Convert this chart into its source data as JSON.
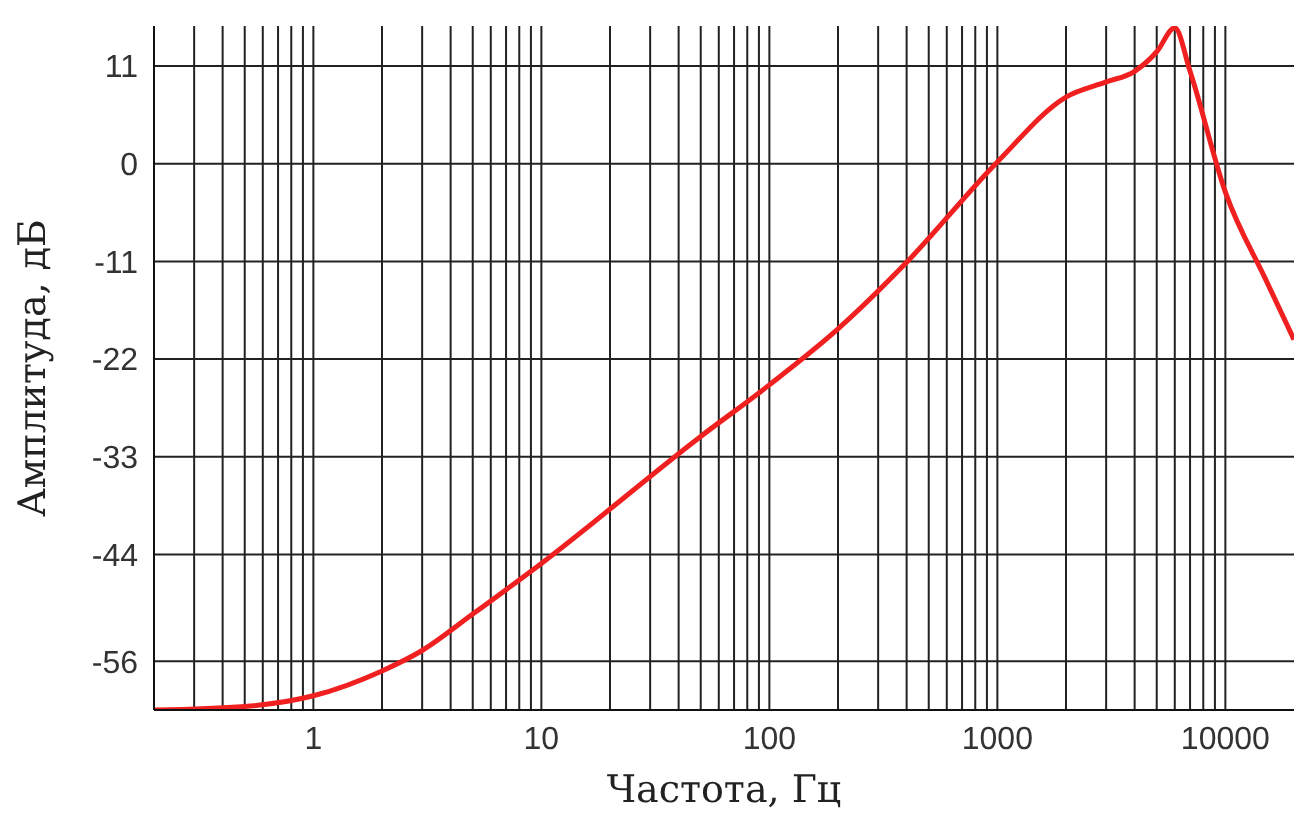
{
  "chart_data": {
    "type": "line",
    "xlabel": "Частота, Гц",
    "ylabel": "Амплитуда, дБ",
    "log": "x",
    "grid": true,
    "marker": "none",
    "line_style": "solid",
    "xlim": [
      0.2,
      20000
    ],
    "ylim": [
      -61.5,
      15.5
    ],
    "xticks": [
      {
        "value": 0.3,
        "label": null
      },
      {
        "value": 0.4,
        "label": null
      },
      {
        "value": 0.5,
        "label": null
      },
      {
        "value": 0.6,
        "label": null
      },
      {
        "value": 0.7,
        "label": null
      },
      {
        "value": 0.8,
        "label": null
      },
      {
        "value": 0.9,
        "label": null
      },
      1,
      {
        "value": 2,
        "label": null
      },
      {
        "value": 3,
        "label": null
      },
      {
        "value": 4,
        "label": null
      },
      {
        "value": 5,
        "label": null
      },
      {
        "value": 6,
        "label": null
      },
      {
        "value": 7,
        "label": null
      },
      {
        "value": 8,
        "label": null
      },
      {
        "value": 9,
        "label": null
      },
      10,
      {
        "value": 20,
        "label": null
      },
      {
        "value": 30,
        "label": null
      },
      {
        "value": 40,
        "label": null
      },
      {
        "value": 50,
        "label": null
      },
      {
        "value": 60,
        "label": null
      },
      {
        "value": 70,
        "label": null
      },
      {
        "value": 80,
        "label": null
      },
      {
        "value": 90,
        "label": null
      },
      100,
      {
        "value": 200,
        "label": null
      },
      {
        "value": 300,
        "label": null
      },
      {
        "value": 400,
        "label": null
      },
      {
        "value": 500,
        "label": null
      },
      {
        "value": 600,
        "label": null
      },
      {
        "value": 700,
        "label": null
      },
      {
        "value": 800,
        "label": null
      },
      {
        "value": 900,
        "label": null
      },
      1000,
      {
        "value": 2000,
        "label": null
      },
      {
        "value": 3000,
        "label": null
      },
      {
        "value": 4000,
        "label": null
      },
      {
        "value": 5000,
        "label": null
      },
      {
        "value": 6000,
        "label": null
      },
      {
        "value": 7000,
        "label": null
      },
      {
        "value": 8000,
        "label": null
      },
      {
        "value": 9000,
        "label": null
      },
      10000
    ],
    "yticks": [
      11,
      0,
      -11,
      -22,
      -33,
      -44,
      -56
    ],
    "x": [
      0.2,
      0.5,
      1,
      2,
      3,
      5,
      10,
      50,
      100,
      200,
      400,
      1000,
      2000,
      3000,
      4000,
      5000,
      6000,
      7000,
      10000,
      15000,
      20000
    ],
    "series": [
      {
        "color": "#f02020",
        "values": [
          -61.5,
          -61.1,
          -59.9,
          -57.1,
          -54.8,
          -50.7,
          -45,
          -30.7,
          -24.9,
          -18.6,
          -11.1,
          0.2,
          7.5,
          9.2,
          10.4,
          12.6,
          15.3,
          10.4,
          -3.2,
          -13,
          -19.8
        ]
      }
    ]
  }
}
